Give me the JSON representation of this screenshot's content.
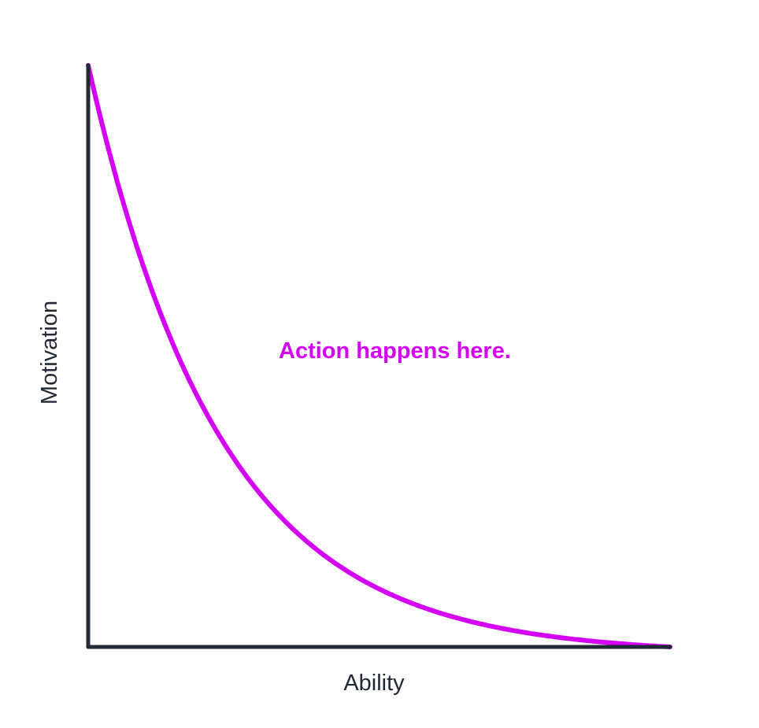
{
  "figure": {
    "x_axis_label": "Ability",
    "y_axis_label": "Motivation",
    "annotation": "Action happens here."
  },
  "colors": {
    "axis": "#1f2a36",
    "curve": "#d400f5",
    "annotation": "#d400f5"
  }
}
